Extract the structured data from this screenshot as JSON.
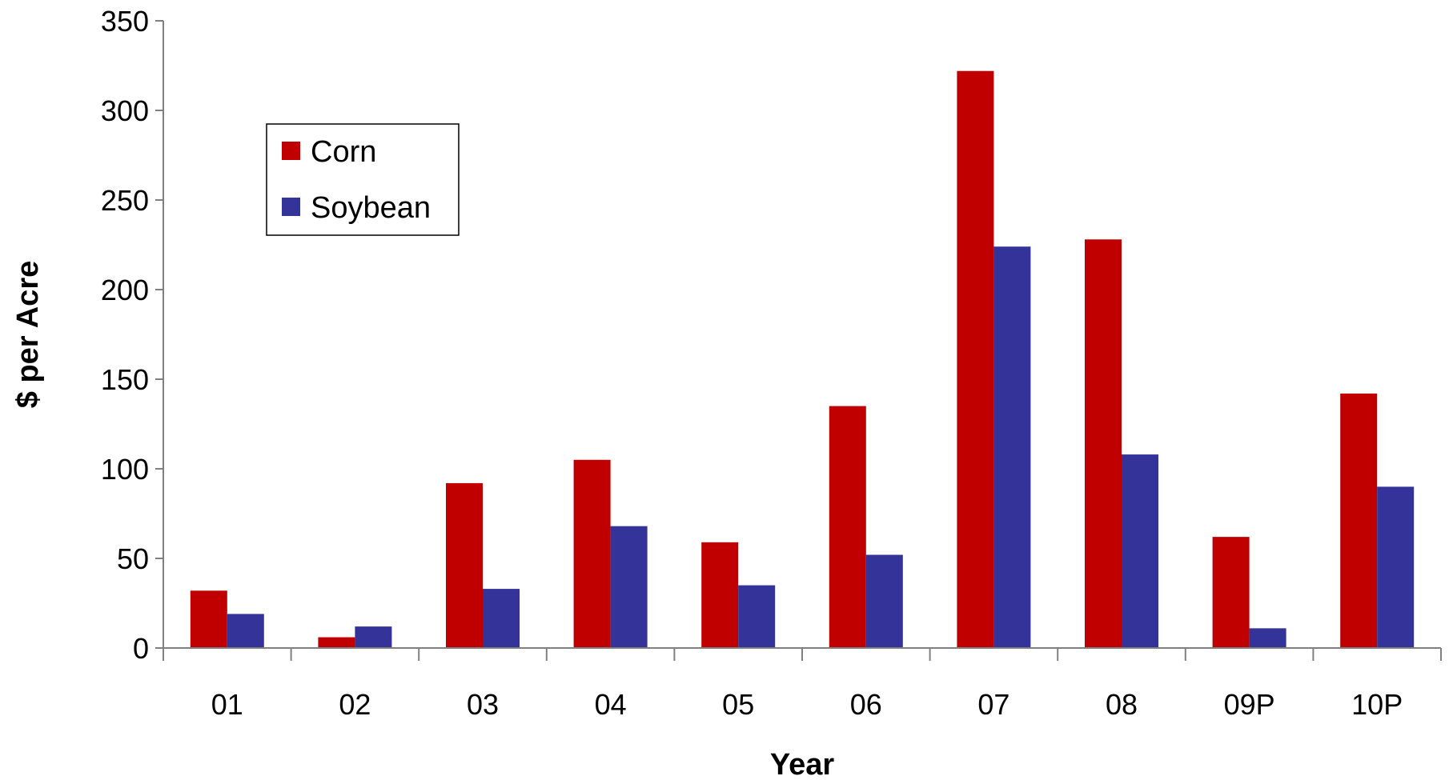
{
  "chart_data": {
    "type": "bar",
    "title": "",
    "xlabel": "Year",
    "ylabel": "$ per Acre",
    "categories": [
      "01",
      "02",
      "03",
      "04",
      "05",
      "06",
      "07",
      "08",
      "09P",
      "10P"
    ],
    "series": [
      {
        "name": "Corn",
        "color": "#c00000",
        "values": [
          32,
          6,
          92,
          105,
          59,
          135,
          322,
          228,
          62,
          142
        ]
      },
      {
        "name": "Soybean",
        "color": "#333399",
        "values": [
          19,
          12,
          33,
          68,
          35,
          52,
          224,
          108,
          11,
          90
        ]
      }
    ],
    "ylim": [
      0,
      350
    ],
    "yticks": [
      0,
      50,
      100,
      150,
      200,
      250,
      300,
      350
    ],
    "grid": false,
    "legend_position": "top-left"
  }
}
